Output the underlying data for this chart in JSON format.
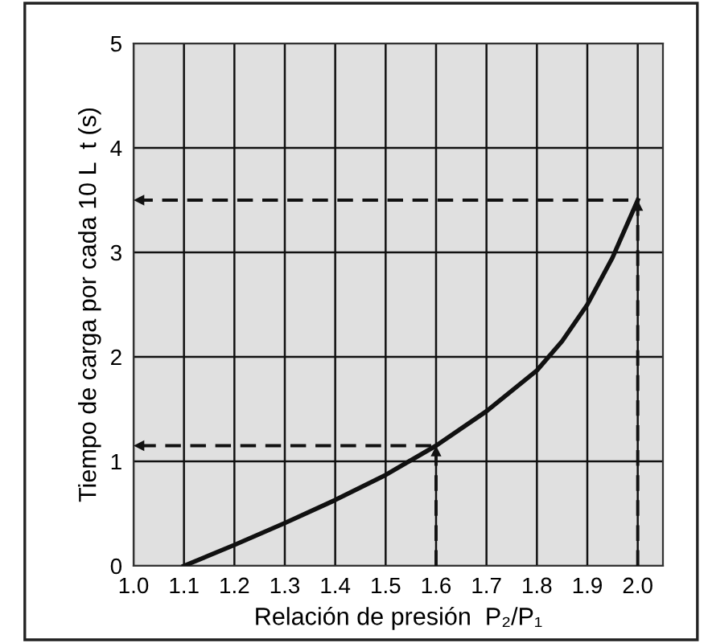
{
  "chart_data": {
    "type": "line",
    "xlabel": "Relación de presión  P₂/P₁",
    "ylabel": "Tiempo de carga por cada 10 L  t (s)",
    "xlim": [
      1.0,
      2.05
    ],
    "ylim": [
      0,
      5
    ],
    "xticks": [
      {
        "value": 1.0,
        "label": "1.0"
      },
      1.1,
      1.2,
      1.3,
      1.4,
      1.5,
      1.6,
      1.7,
      1.8,
      1.9,
      {
        "value": 2.0,
        "label": "2.0"
      }
    ],
    "yticks": [
      0,
      1,
      2,
      3,
      4,
      5
    ],
    "grid": true,
    "legend": false,
    "series": [
      {
        "color": "#111111",
        "line_style": "solid",
        "x": [
          1.1,
          1.2,
          1.3,
          1.4,
          1.5,
          1.6,
          1.7,
          1.8,
          1.85,
          1.9,
          1.95,
          2.0
        ],
        "values": [
          0,
          0.2,
          0.41,
          0.63,
          0.87,
          1.15,
          1.48,
          1.87,
          2.15,
          2.5,
          2.95,
          3.5
        ]
      },
      {
        "color": "#111111",
        "line_style": "dashed",
        "x": [
          1.6,
          1.6,
          1.0
        ],
        "values": [
          0,
          1.15,
          1.15
        ]
      },
      {
        "color": "#111111",
        "line_style": "dashed",
        "x": [
          2.0,
          2.0,
          1.0
        ],
        "values": [
          0,
          3.5,
          3.5
        ]
      }
    ]
  }
}
